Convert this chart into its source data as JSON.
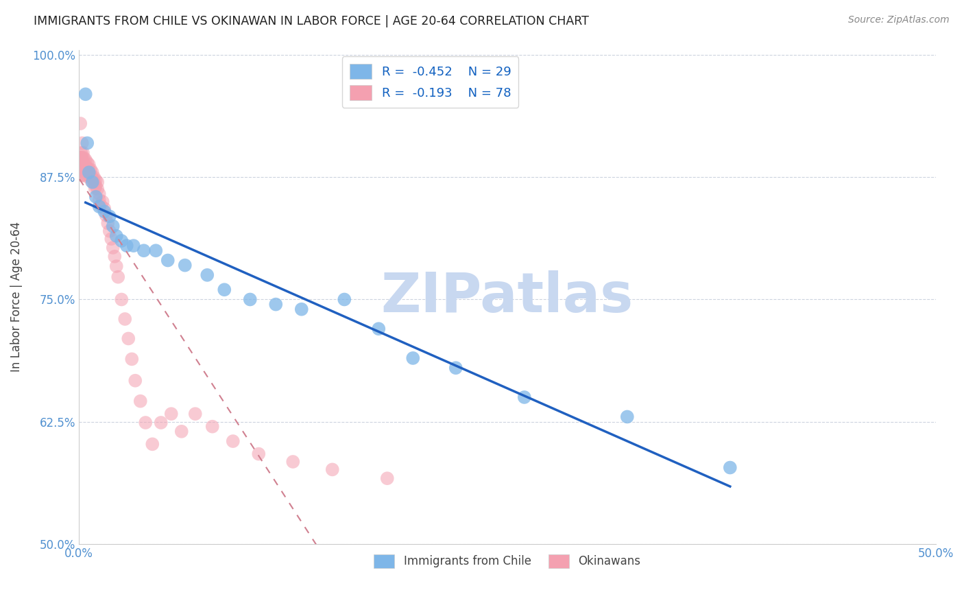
{
  "title": "IMMIGRANTS FROM CHILE VS OKINAWAN IN LABOR FORCE | AGE 20-64 CORRELATION CHART",
  "source": "Source: ZipAtlas.com",
  "ylabel": "In Labor Force | Age 20-64",
  "xlim": [
    0.0,
    0.5
  ],
  "ylim": [
    0.5,
    1.005
  ],
  "xticks": [
    0.0,
    0.05,
    0.1,
    0.15,
    0.2,
    0.25,
    0.3,
    0.35,
    0.4,
    0.45,
    0.5
  ],
  "xtick_labels": [
    "0.0%",
    "",
    "",
    "",
    "",
    "",
    "",
    "",
    "",
    "",
    "50.0%"
  ],
  "yticks": [
    0.5,
    0.625,
    0.75,
    0.875,
    1.0
  ],
  "ytick_labels": [
    "50.0%",
    "62.5%",
    "75.0%",
    "87.5%",
    "100.0%"
  ],
  "legend_r1": "R =  -0.452",
  "legend_n1": "N = 29",
  "legend_r2": "R =  -0.193",
  "legend_n2": "N = 78",
  "color_chile": "#7EB6E8",
  "color_okinawan": "#F4A0B0",
  "trendline_chile_color": "#2060C0",
  "trendline_okinawan_color": "#D08090",
  "watermark": "ZIPatlas",
  "watermark_color": "#C8D8F0",
  "chile_x": [
    0.004,
    0.005,
    0.006,
    0.008,
    0.01,
    0.012,
    0.015,
    0.018,
    0.02,
    0.022,
    0.025,
    0.028,
    0.032,
    0.038,
    0.045,
    0.052,
    0.062,
    0.075,
    0.085,
    0.1,
    0.115,
    0.13,
    0.155,
    0.175,
    0.195,
    0.22,
    0.26,
    0.32,
    0.38
  ],
  "chile_y": [
    0.96,
    0.91,
    0.88,
    0.87,
    0.855,
    0.845,
    0.84,
    0.835,
    0.825,
    0.815,
    0.81,
    0.805,
    0.805,
    0.8,
    0.8,
    0.79,
    0.785,
    0.775,
    0.76,
    0.75,
    0.745,
    0.74,
    0.75,
    0.72,
    0.69,
    0.68,
    0.65,
    0.63,
    0.578
  ],
  "okinawan_x": [
    0.0005,
    0.0006,
    0.0007,
    0.0008,
    0.0009,
    0.001,
    0.001,
    0.0012,
    0.0013,
    0.0014,
    0.0015,
    0.0016,
    0.0017,
    0.0018,
    0.0019,
    0.002,
    0.002,
    0.0022,
    0.0023,
    0.0024,
    0.0025,
    0.003,
    0.003,
    0.0032,
    0.0035,
    0.004,
    0.004,
    0.0042,
    0.0045,
    0.005,
    0.005,
    0.0055,
    0.006,
    0.006,
    0.0065,
    0.007,
    0.007,
    0.0075,
    0.008,
    0.008,
    0.009,
    0.009,
    0.0095,
    0.01,
    0.01,
    0.011,
    0.011,
    0.012,
    0.012,
    0.013,
    0.014,
    0.015,
    0.016,
    0.017,
    0.018,
    0.019,
    0.02,
    0.021,
    0.022,
    0.023,
    0.025,
    0.027,
    0.029,
    0.031,
    0.033,
    0.036,
    0.039,
    0.043,
    0.048,
    0.054,
    0.06,
    0.068,
    0.078,
    0.09,
    0.105,
    0.125,
    0.148,
    0.18
  ],
  "okinawan_y": [
    0.895,
    0.89,
    0.895,
    0.89,
    0.886,
    0.93,
    0.895,
    0.892,
    0.887,
    0.882,
    0.9,
    0.895,
    0.889,
    0.883,
    0.877,
    0.91,
    0.895,
    0.889,
    0.883,
    0.877,
    0.9,
    0.895,
    0.889,
    0.884,
    0.878,
    0.893,
    0.887,
    0.882,
    0.876,
    0.89,
    0.884,
    0.879,
    0.888,
    0.883,
    0.877,
    0.883,
    0.877,
    0.871,
    0.88,
    0.874,
    0.875,
    0.87,
    0.864,
    0.872,
    0.866,
    0.87,
    0.863,
    0.858,
    0.852,
    0.846,
    0.85,
    0.843,
    0.836,
    0.828,
    0.82,
    0.812,
    0.803,
    0.794,
    0.784,
    0.773,
    0.75,
    0.73,
    0.71,
    0.689,
    0.667,
    0.646,
    0.624,
    0.602,
    0.624,
    0.633,
    0.615,
    0.633,
    0.62,
    0.605,
    0.592,
    0.584,
    0.576,
    0.567
  ]
}
